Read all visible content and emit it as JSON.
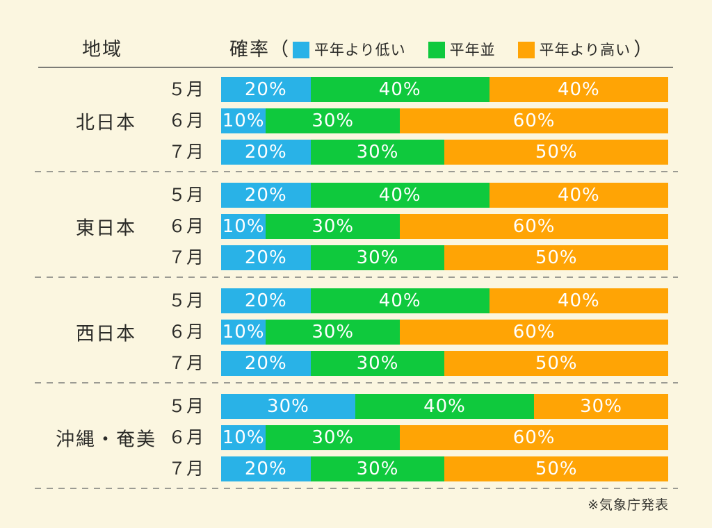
{
  "header": {
    "region_column_label": "地域",
    "probability_label": "確率",
    "paren_open": "（",
    "paren_close": "）",
    "legend": [
      {
        "label": "平年より低い",
        "color": "#29b2e7"
      },
      {
        "label": "平年並",
        "color": "#0fc93d"
      },
      {
        "label": "平年より高い",
        "color": "#ffa405"
      }
    ]
  },
  "footer": {
    "source_note": "※気象庁発表"
  },
  "colors": {
    "below_normal": "#29b2e7",
    "near_normal": "#0fc93d",
    "above_normal": "#ffa405",
    "background": "#fbf6e0"
  },
  "chart_data": {
    "type": "bar",
    "stacked": true,
    "orientation": "horizontal",
    "unit": "%",
    "xlim": [
      0,
      100
    ],
    "series_names": [
      "平年より低い",
      "平年並",
      "平年より高い"
    ],
    "series_colors": [
      "#29b2e7",
      "#0fc93d",
      "#ffa405"
    ],
    "groups": [
      {
        "region": "北日本",
        "rows": [
          {
            "month": "５月",
            "values": [
              20,
              40,
              40
            ]
          },
          {
            "month": "６月",
            "values": [
              10,
              30,
              60
            ]
          },
          {
            "month": "７月",
            "values": [
              20,
              30,
              50
            ]
          }
        ]
      },
      {
        "region": "東日本",
        "rows": [
          {
            "month": "５月",
            "values": [
              20,
              40,
              40
            ]
          },
          {
            "month": "６月",
            "values": [
              10,
              30,
              60
            ]
          },
          {
            "month": "７月",
            "values": [
              20,
              30,
              50
            ]
          }
        ]
      },
      {
        "region": "西日本",
        "rows": [
          {
            "month": "５月",
            "values": [
              20,
              40,
              40
            ]
          },
          {
            "month": "６月",
            "values": [
              10,
              30,
              60
            ]
          },
          {
            "month": "７月",
            "values": [
              20,
              30,
              50
            ]
          }
        ]
      },
      {
        "region": "沖縄・奄美",
        "rows": [
          {
            "month": "５月",
            "values": [
              30,
              40,
              30
            ]
          },
          {
            "month": "６月",
            "values": [
              10,
              30,
              60
            ]
          },
          {
            "month": "７月",
            "values": [
              20,
              30,
              50
            ]
          }
        ]
      }
    ]
  }
}
